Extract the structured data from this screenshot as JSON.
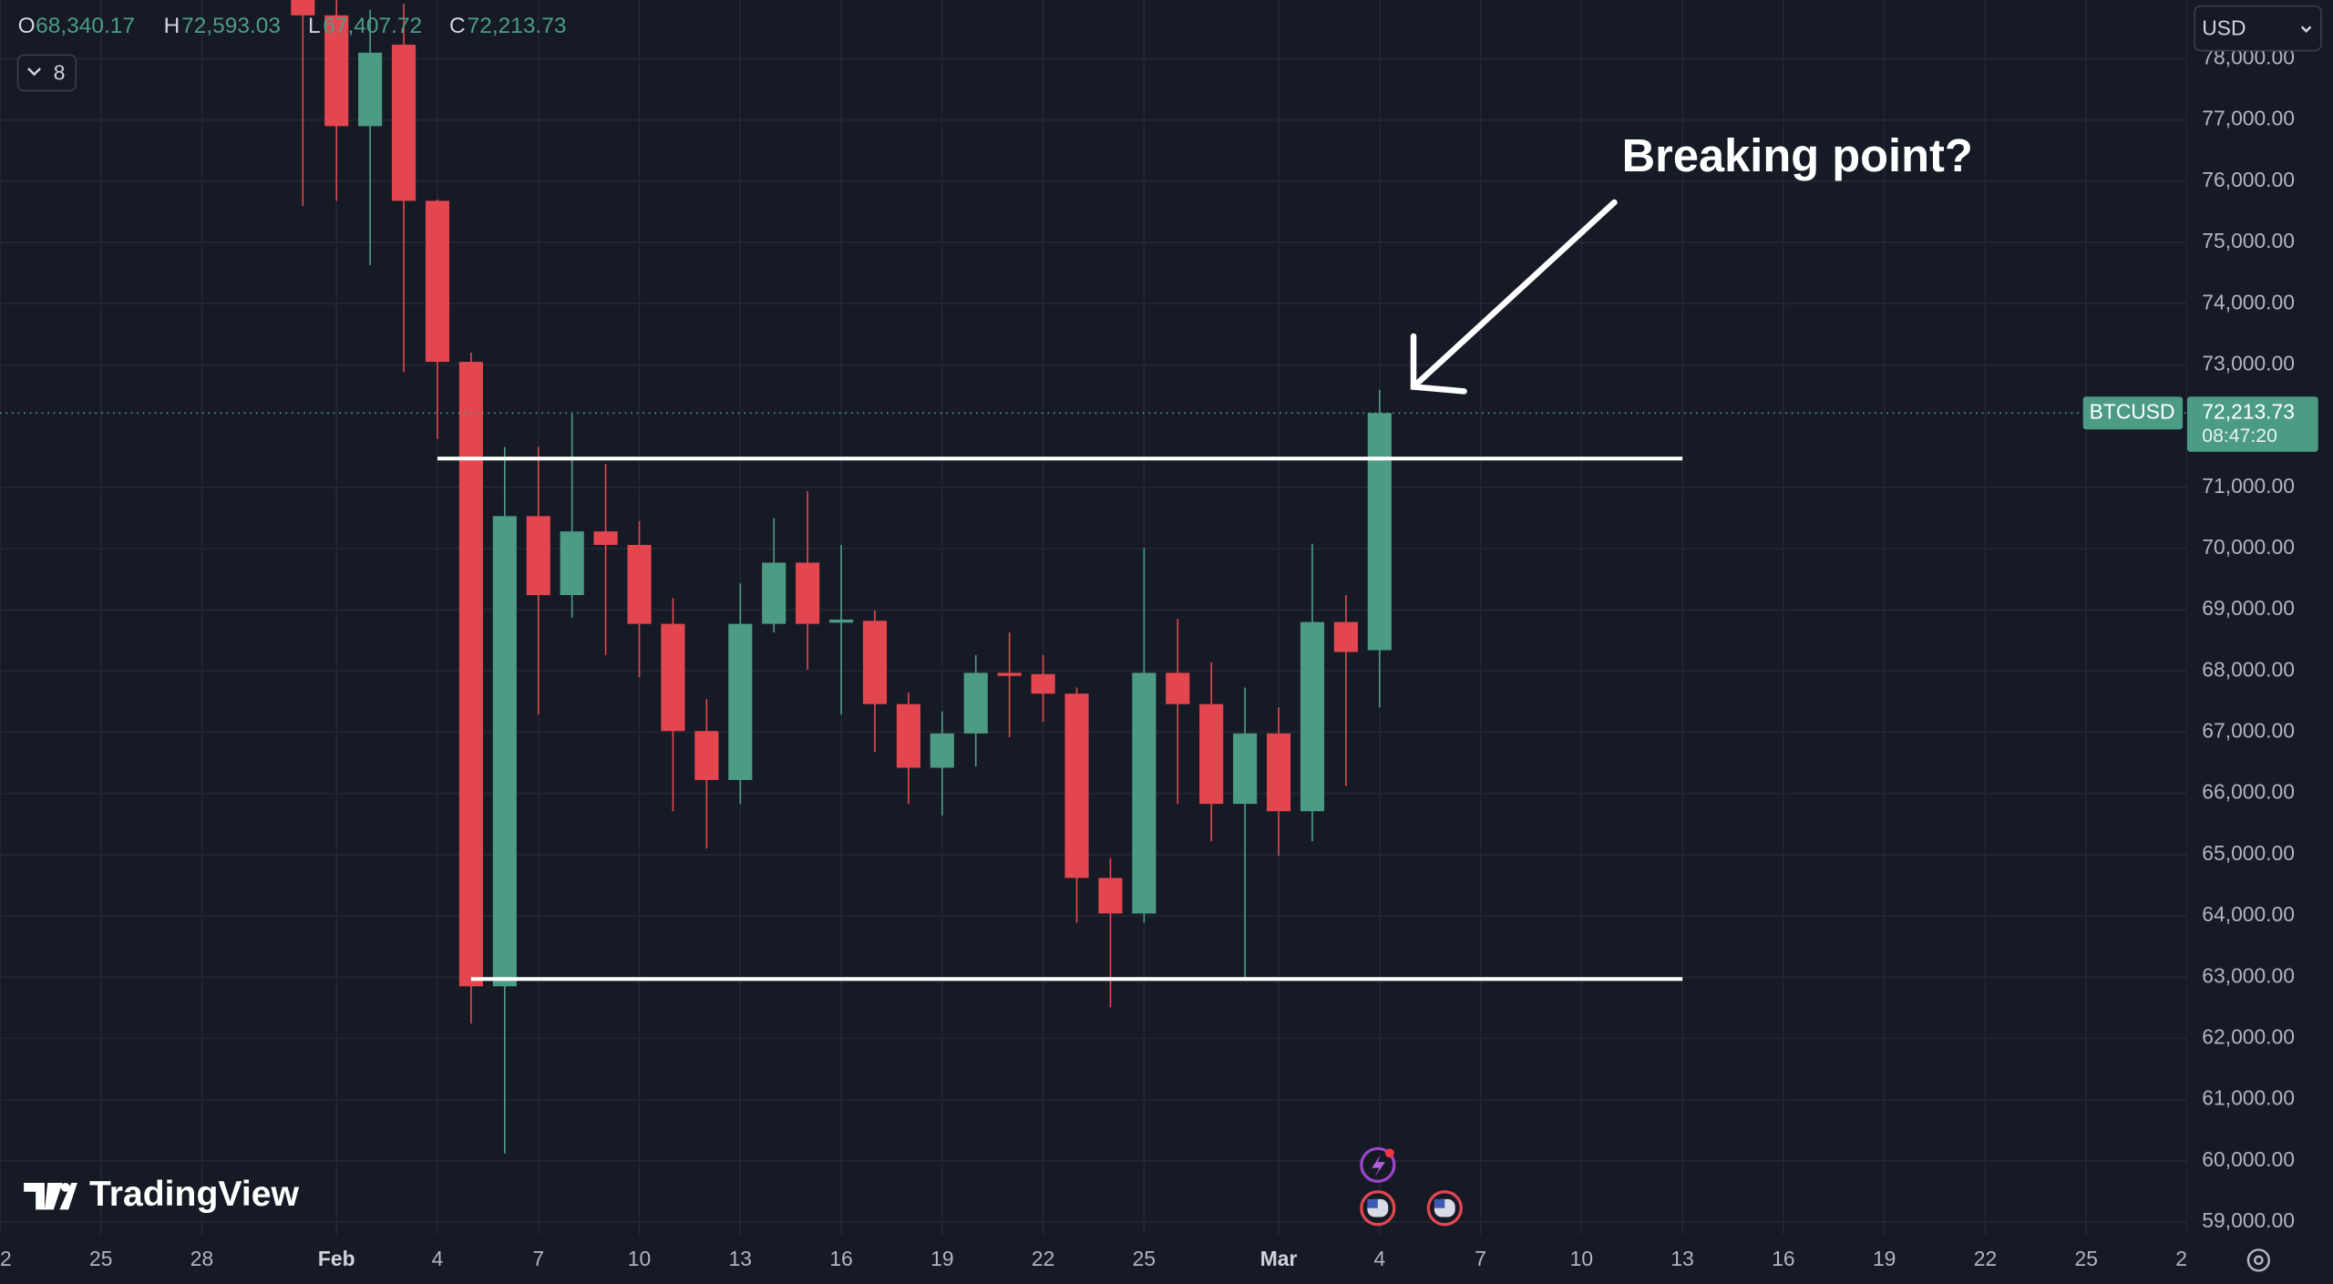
{
  "chart_data": {
    "type": "candlestick",
    "symbol": "BTCUSD",
    "currency": "USD",
    "collapsed_indicators": 8,
    "ohlc_header": [
      {
        "key": "O",
        "value": 68340.17,
        "label": "68,340.17"
      },
      {
        "key": "H",
        "value": 72593.03,
        "label": "72,593.03"
      },
      {
        "key": "L",
        "value": 67407.72,
        "label": "67,407.72"
      },
      {
        "key": "C",
        "value": 72213.73,
        "label": "72,213.73"
      }
    ],
    "x": [
      "01-31",
      "02-01",
      "02-02",
      "02-03",
      "02-04",
      "02-05",
      "02-06",
      "02-07",
      "02-08",
      "02-09",
      "02-10",
      "02-11",
      "02-12",
      "02-13",
      "02-14",
      "02-15",
      "02-16",
      "02-17",
      "02-18",
      "02-19",
      "02-20",
      "02-21",
      "02-22",
      "02-23",
      "02-24",
      "02-25",
      "02-26",
      "02-27",
      "02-28",
      "03-01",
      "03-02",
      "03-03",
      "03-04"
    ],
    "open": [
      79000,
      78710,
      76900,
      78230,
      75680,
      73050,
      62850,
      70530,
      69240,
      70280,
      70060,
      68770,
      67020,
      66220,
      68770,
      69770,
      68790,
      68820,
      67460,
      66420,
      66980,
      67970,
      67950,
      67630,
      64620,
      64040,
      67970,
      67460,
      65830,
      66980,
      65710,
      68800,
      68340.17
    ],
    "high": [
      79300,
      79200,
      78800,
      78900,
      75700,
      73200,
      71660,
      71660,
      72200,
      71380,
      70450,
      69190,
      67540,
      69430,
      70500,
      70940,
      70060,
      68990,
      67650,
      67340,
      68260,
      68630,
      68260,
      67730,
      64940,
      70010,
      68850,
      68140,
      67730,
      67410,
      70080,
      69240,
      72593.03
    ],
    "low": [
      75600,
      75680,
      74630,
      72880,
      71790,
      62240,
      60120,
      67290,
      68870,
      68260,
      67900,
      65710,
      65100,
      65830,
      68630,
      68020,
      67290,
      66680,
      65830,
      65640,
      66440,
      66920,
      67170,
      63890,
      62510,
      63890,
      65830,
      65220,
      63000,
      64980,
      65220,
      66120,
      67407.72
    ],
    "close": [
      78710,
      76900,
      78100,
      75680,
      73050,
      62850,
      70530,
      69240,
      70280,
      70060,
      68770,
      67020,
      66220,
      68770,
      69770,
      68770,
      68840,
      67460,
      66420,
      66980,
      67970,
      67920,
      67630,
      64620,
      64040,
      67970,
      67460,
      65830,
      66980,
      65710,
      68800,
      68310,
      72213.73
    ],
    "up_color": "#4c9c85",
    "down_color": "#e4464f",
    "xlim": [
      "01-22",
      "03-28"
    ],
    "xticks": [
      {
        "value": "01-22",
        "label": "2"
      },
      {
        "value": "01-25",
        "label": "25"
      },
      {
        "value": "01-28",
        "label": "28"
      },
      {
        "value": "02-01",
        "label": "Feb"
      },
      {
        "value": "02-04",
        "label": "4"
      },
      {
        "value": "02-07",
        "label": "7"
      },
      {
        "value": "02-10",
        "label": "10"
      },
      {
        "value": "02-13",
        "label": "13"
      },
      {
        "value": "02-16",
        "label": "16"
      },
      {
        "value": "02-19",
        "label": "19"
      },
      {
        "value": "02-22",
        "label": "22"
      },
      {
        "value": "02-25",
        "label": "25"
      },
      {
        "value": "03-01",
        "label": "Mar"
      },
      {
        "value": "03-04",
        "label": "4"
      },
      {
        "value": "03-07",
        "label": "7"
      },
      {
        "value": "03-10",
        "label": "10"
      },
      {
        "value": "03-13",
        "label": "13"
      },
      {
        "value": "03-16",
        "label": "16"
      },
      {
        "value": "03-19",
        "label": "19"
      },
      {
        "value": "03-22",
        "label": "22"
      },
      {
        "value": "03-25",
        "label": "25"
      },
      {
        "value": "03-28",
        "label": "2"
      }
    ],
    "ylim": [
      58790,
      78960
    ],
    "yticks": [
      {
        "value": 59000,
        "label": "59,000.00"
      },
      {
        "value": 60000,
        "label": "60,000.00"
      },
      {
        "value": 61000,
        "label": "61,000.00"
      },
      {
        "value": 62000,
        "label": "62,000.00"
      },
      {
        "value": 63000,
        "label": "63,000.00"
      },
      {
        "value": 64000,
        "label": "64,000.00"
      },
      {
        "value": 65000,
        "label": "65,000.00"
      },
      {
        "value": 66000,
        "label": "66,000.00"
      },
      {
        "value": 67000,
        "label": "67,000.00"
      },
      {
        "value": 68000,
        "label": "68,000.00"
      },
      {
        "value": 69000,
        "label": "69,000.00"
      },
      {
        "value": 70000,
        "label": "70,000.00"
      },
      {
        "value": 71000,
        "label": "71,000.00"
      },
      {
        "value": 73000,
        "label": "73,000.00"
      },
      {
        "value": 74000,
        "label": "74,000.00"
      },
      {
        "value": 75000,
        "label": "75,000.00"
      },
      {
        "value": 76000,
        "label": "76,000.00"
      },
      {
        "value": 77000,
        "label": "77,000.00"
      },
      {
        "value": 78000,
        "label": "78,000.00"
      }
    ],
    "grid": true,
    "last_price": {
      "value": 72213.73,
      "label": "72,213.73"
    },
    "countdown": "08:47:20",
    "levels": [
      {
        "value": 71470,
        "from": "02-04",
        "to": "03-13"
      },
      {
        "value": 62970,
        "from": "02-05",
        "to": "03-13"
      }
    ],
    "annotation": "Breaking point?",
    "watermark": "TradingView"
  }
}
